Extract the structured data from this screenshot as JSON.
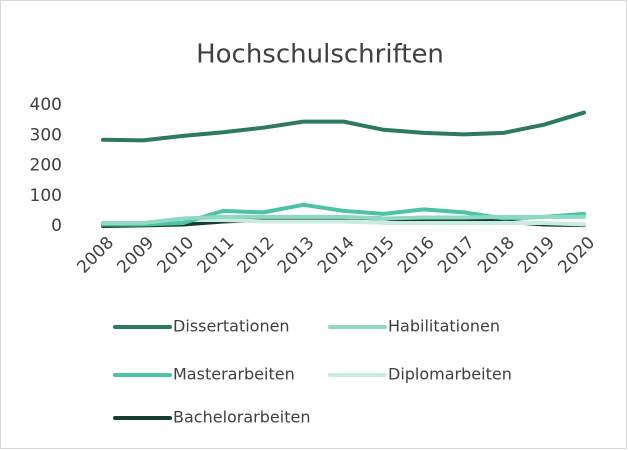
{
  "chart_data": {
    "type": "line",
    "title": "Hochschulschriften",
    "x": [
      "2008",
      "2009",
      "2010",
      "2011",
      "2012",
      "2013",
      "2014",
      "2015",
      "2016",
      "2017",
      "2018",
      "2019",
      "2020"
    ],
    "series": [
      {
        "name": "Dissertationen",
        "color": "#2b7a61",
        "values": [
          285,
          283,
          298,
          310,
          325,
          345,
          345,
          318,
          308,
          303,
          308,
          335,
          375
        ]
      },
      {
        "name": "Habilitationen",
        "color": "#8fd8c3",
        "values": [
          10,
          10,
          25,
          30,
          30,
          30,
          30,
          25,
          28,
          28,
          30,
          30,
          30
        ]
      },
      {
        "name": "Masterarbeiten",
        "color": "#4cc3a3",
        "values": [
          5,
          5,
          10,
          50,
          45,
          70,
          50,
          40,
          55,
          45,
          25,
          30,
          40
        ]
      },
      {
        "name": "Diplomarbeiten",
        "color": "#c8ece0",
        "values": [
          5,
          10,
          20,
          20,
          15,
          15,
          15,
          10,
          10,
          10,
          10,
          10,
          5
        ]
      },
      {
        "name": "Bachelorarbeiten",
        "color": "#173d30",
        "values": [
          0,
          2,
          5,
          15,
          20,
          25,
          28,
          25,
          15,
          20,
          15,
          5,
          3
        ]
      }
    ],
    "ylim": [
      0,
      400
    ],
    "yticks": [
      0,
      100,
      200,
      300,
      400
    ],
    "grid": false,
    "legend": "bottom"
  }
}
